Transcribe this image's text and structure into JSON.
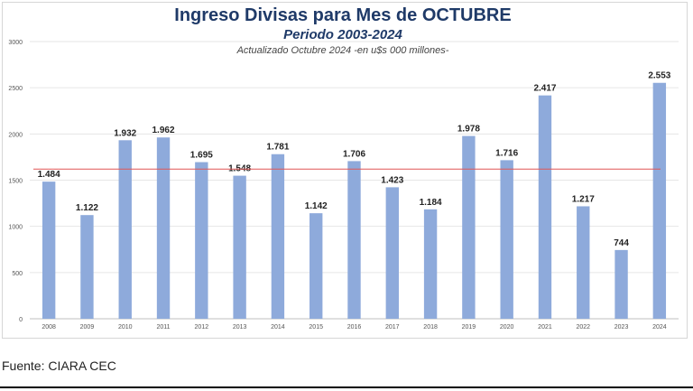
{
  "chart_data": {
    "type": "bar",
    "title": "Ingreso Divisas para Mes de OCTUBRE",
    "subtitle": "Periodo 2003-2024",
    "note": "Actualizado Octubre 2024 -en u$s 000 millones-",
    "categories": [
      "2008",
      "2009",
      "2010",
      "2011",
      "2012",
      "2013",
      "2014",
      "2015",
      "2016",
      "2017",
      "2018",
      "2019",
      "2020",
      "2021",
      "2022",
      "2023",
      "2024"
    ],
    "values": [
      1484,
      1122,
      1932,
      1962,
      1695,
      1548,
      1781,
      1142,
      1706,
      1423,
      1184,
      1978,
      1716,
      2417,
      1217,
      744,
      2553
    ],
    "value_labels": [
      "1.484",
      "1.122",
      "1.932",
      "1.962",
      "1.695",
      "1.548",
      "1.781",
      "1.142",
      "1.706",
      "1.423",
      "1.184",
      "1.978",
      "1.716",
      "2.417",
      "1.217",
      "744",
      "2.553"
    ],
    "ylim": [
      0,
      3000
    ],
    "yticks": [
      0,
      500,
      1000,
      1500,
      2000,
      2500,
      3000
    ],
    "reference_line": 1620,
    "grid": true,
    "colors": {
      "bar": "#8eaadb",
      "reference": "#e05555",
      "grid": "#e6e6e6"
    }
  },
  "source": "Fuente: CIARA CEC"
}
